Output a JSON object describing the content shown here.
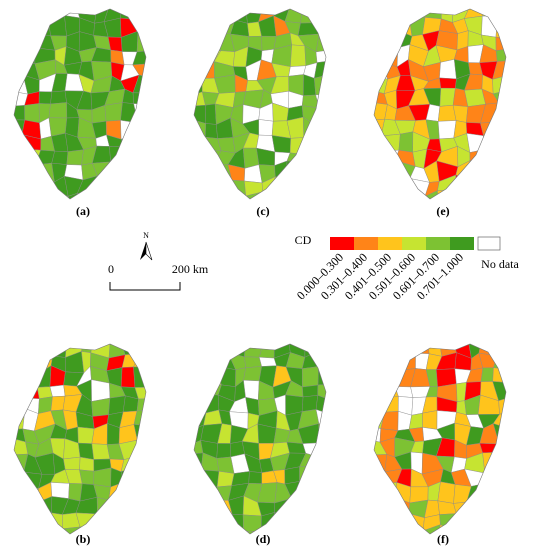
{
  "panels": [
    "(a)",
    "(c)",
    "(e)",
    "(b)",
    "(d)",
    "(f)"
  ],
  "north": "N",
  "scale": {
    "start": "0",
    "end": "200 km"
  },
  "legend": {
    "title": "CD",
    "items": [
      {
        "label": "0.000–0.300",
        "color": "#ff0000"
      },
      {
        "label": "0.301–0.400",
        "color": "#ff8418"
      },
      {
        "label": "0.401–0.500",
        "color": "#ffc41c"
      },
      {
        "label": "0.501–0.600",
        "color": "#c6e431"
      },
      {
        "label": "0.601–0.700",
        "color": "#7dc233"
      },
      {
        "label": "0.701–1.000",
        "color": "#3f9b1f"
      }
    ],
    "no_data": "No data"
  }
}
